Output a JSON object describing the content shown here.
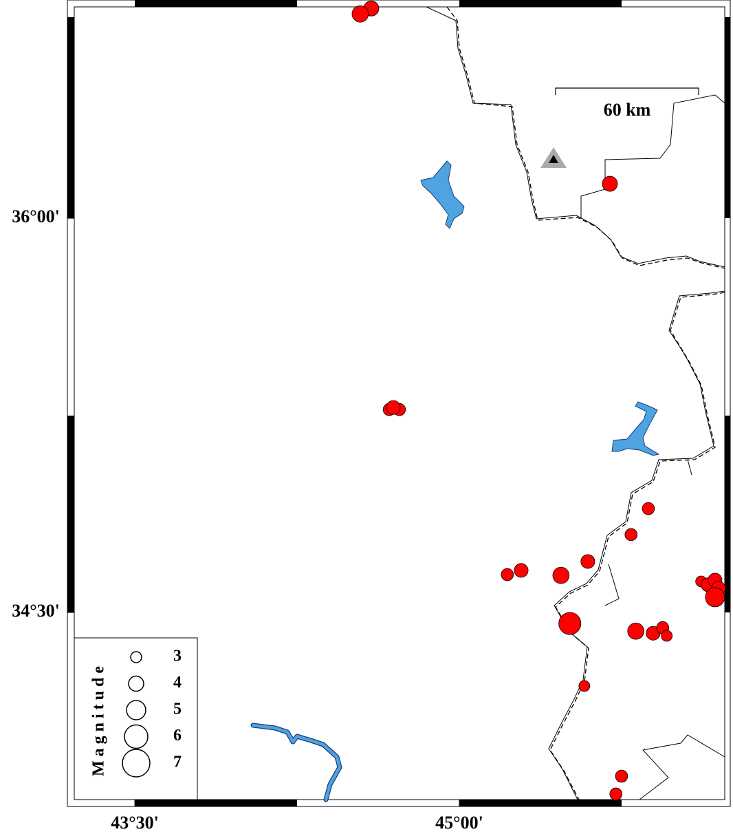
{
  "map": {
    "xlim": [
      43.22,
      46.227
    ],
    "ylim": [
      33.788,
      36.804
    ],
    "xticks": [
      {
        "value": 43.5,
        "label": "43°30'"
      },
      {
        "value": 45,
        "label": "45°00'"
      }
    ],
    "yticks": [
      {
        "value": 34.5,
        "label": "34°30'"
      },
      {
        "value": 36,
        "label": "36°00'"
      }
    ],
    "scale_label": "60 km",
    "event_color": "#ff0000",
    "legend": {
      "title": "Magnitude",
      "sizes": [
        3,
        4,
        5,
        6,
        7
      ]
    },
    "events": [
      {
        "lon": 44.593,
        "lat": 36.798,
        "mag": 4
      },
      {
        "lon": 44.542,
        "lat": 36.777,
        "mag": 4.3
      },
      {
        "lon": 45.696,
        "lat": 36.131,
        "mag": 4
      },
      {
        "lon": 44.676,
        "lat": 35.272,
        "mag": 3.3
      },
      {
        "lon": 44.723,
        "lat": 35.272,
        "mag": 3.3
      },
      {
        "lon": 44.695,
        "lat": 35.28,
        "mag": 3.7
      },
      {
        "lon": 45.874,
        "lat": 34.895,
        "mag": 3.3
      },
      {
        "lon": 45.794,
        "lat": 34.796,
        "mag": 3.3
      },
      {
        "lon": 45.594,
        "lat": 34.694,
        "mag": 3.7
      },
      {
        "lon": 45.286,
        "lat": 34.66,
        "mag": 3.7
      },
      {
        "lon": 45.222,
        "lat": 34.644,
        "mag": 3.3
      },
      {
        "lon": 45.47,
        "lat": 34.641,
        "mag": 4.3
      },
      {
        "lon": 46.118,
        "lat": 34.618,
        "mag": 3
      },
      {
        "lon": 46.15,
        "lat": 34.605,
        "mag": 3.7
      },
      {
        "lon": 46.182,
        "lat": 34.623,
        "mag": 3.7
      },
      {
        "lon": 46.198,
        "lat": 34.592,
        "mag": 3.7
      },
      {
        "lon": 46.182,
        "lat": 34.558,
        "mag": 5
      },
      {
        "lon": 45.511,
        "lat": 34.458,
        "mag": 5.7
      },
      {
        "lon": 45.816,
        "lat": 34.429,
        "mag": 4.3
      },
      {
        "lon": 45.896,
        "lat": 34.421,
        "mag": 3.7
      },
      {
        "lon": 45.94,
        "lat": 34.442,
        "mag": 3.3
      },
      {
        "lon": 45.959,
        "lat": 34.411,
        "mag": 3
      },
      {
        "lon": 45.578,
        "lat": 34.22,
        "mag": 3
      },
      {
        "lon": 45.75,
        "lat": 33.877,
        "mag": 3.3
      },
      {
        "lon": 45.724,
        "lat": 33.809,
        "mag": 3.3
      }
    ]
  }
}
